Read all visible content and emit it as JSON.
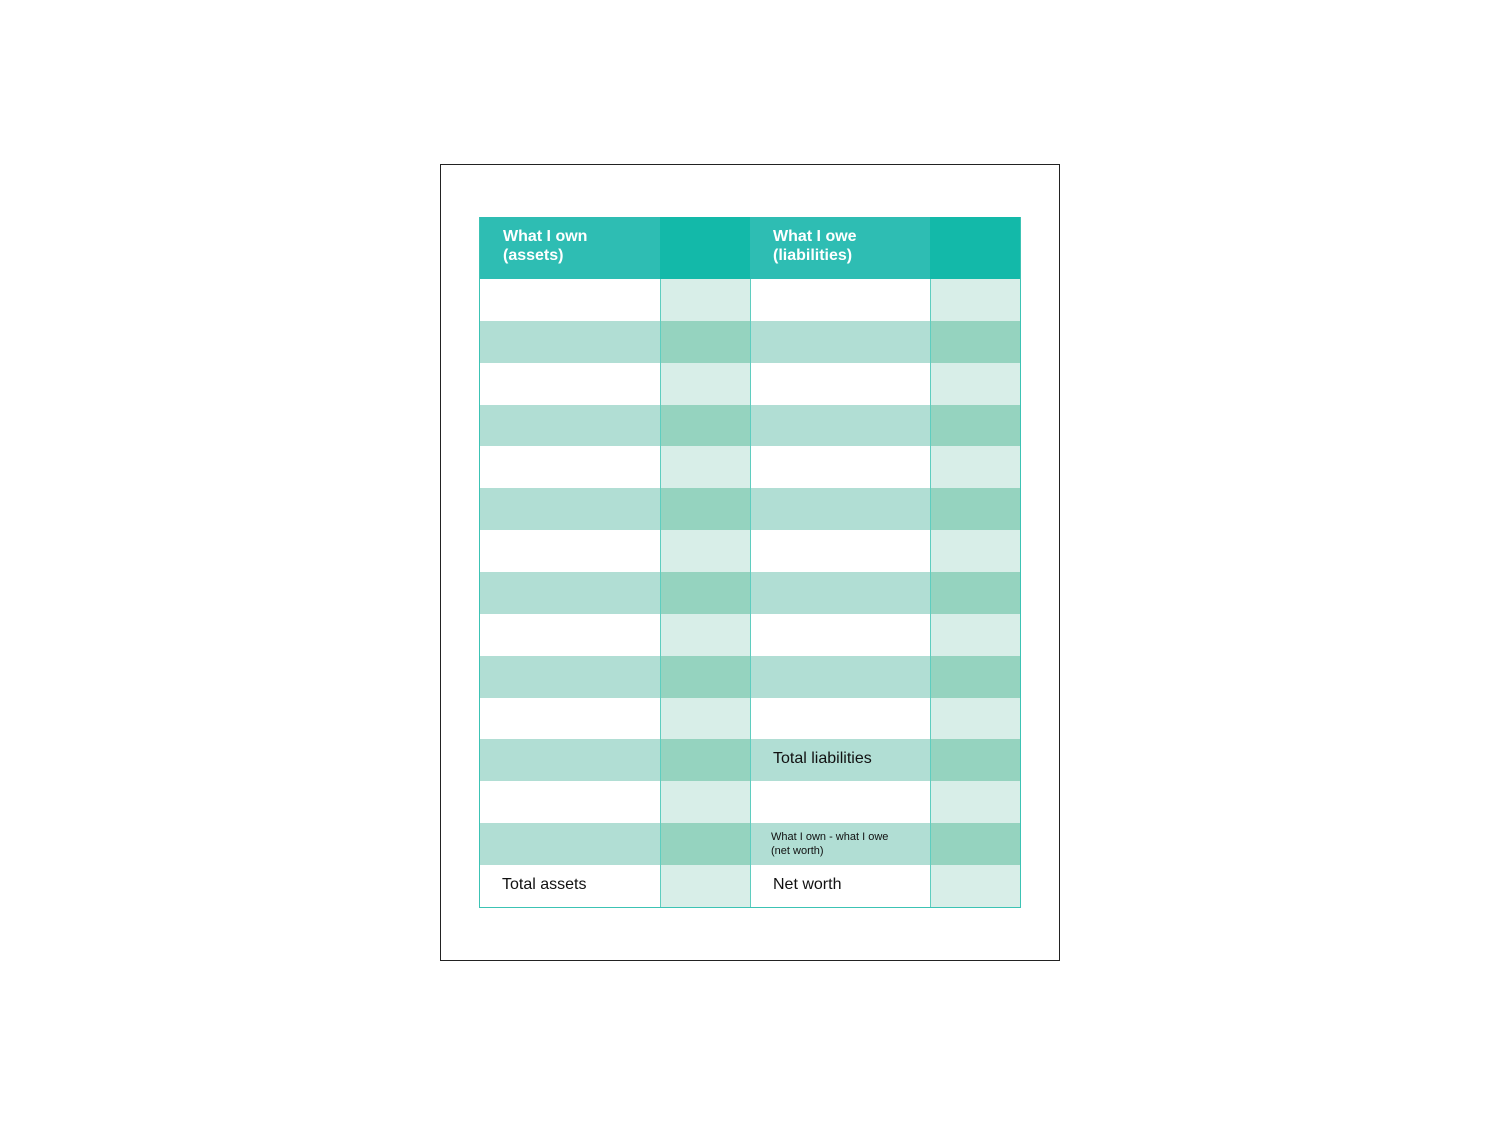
{
  "header": {
    "assets_title": "What I own\n(assets)",
    "liabilities_title": "What I owe\n(liabilities)"
  },
  "colors": {
    "header": "#2ebdb3",
    "header_dark": "#13b9a9",
    "band": "#b1ded4",
    "band_dark": "#95d3bf",
    "light": "#d8eee8"
  },
  "rows": [
    {
      "a": "",
      "l": ""
    },
    {
      "a": "",
      "l": ""
    },
    {
      "a": "",
      "l": ""
    },
    {
      "a": "",
      "l": ""
    },
    {
      "a": "",
      "l": ""
    },
    {
      "a": "",
      "l": ""
    },
    {
      "a": "",
      "l": ""
    },
    {
      "a": "",
      "l": ""
    },
    {
      "a": "",
      "l": ""
    },
    {
      "a": "",
      "l": ""
    },
    {
      "a": "",
      "l": ""
    },
    {
      "a": "",
      "l": "Total liabilities"
    },
    {
      "a": "",
      "l": ""
    },
    {
      "a": "",
      "l": "",
      "note": "What I own - what I owe\n(net worth)"
    },
    {
      "a": "Total assets",
      "l": "Net worth"
    }
  ]
}
